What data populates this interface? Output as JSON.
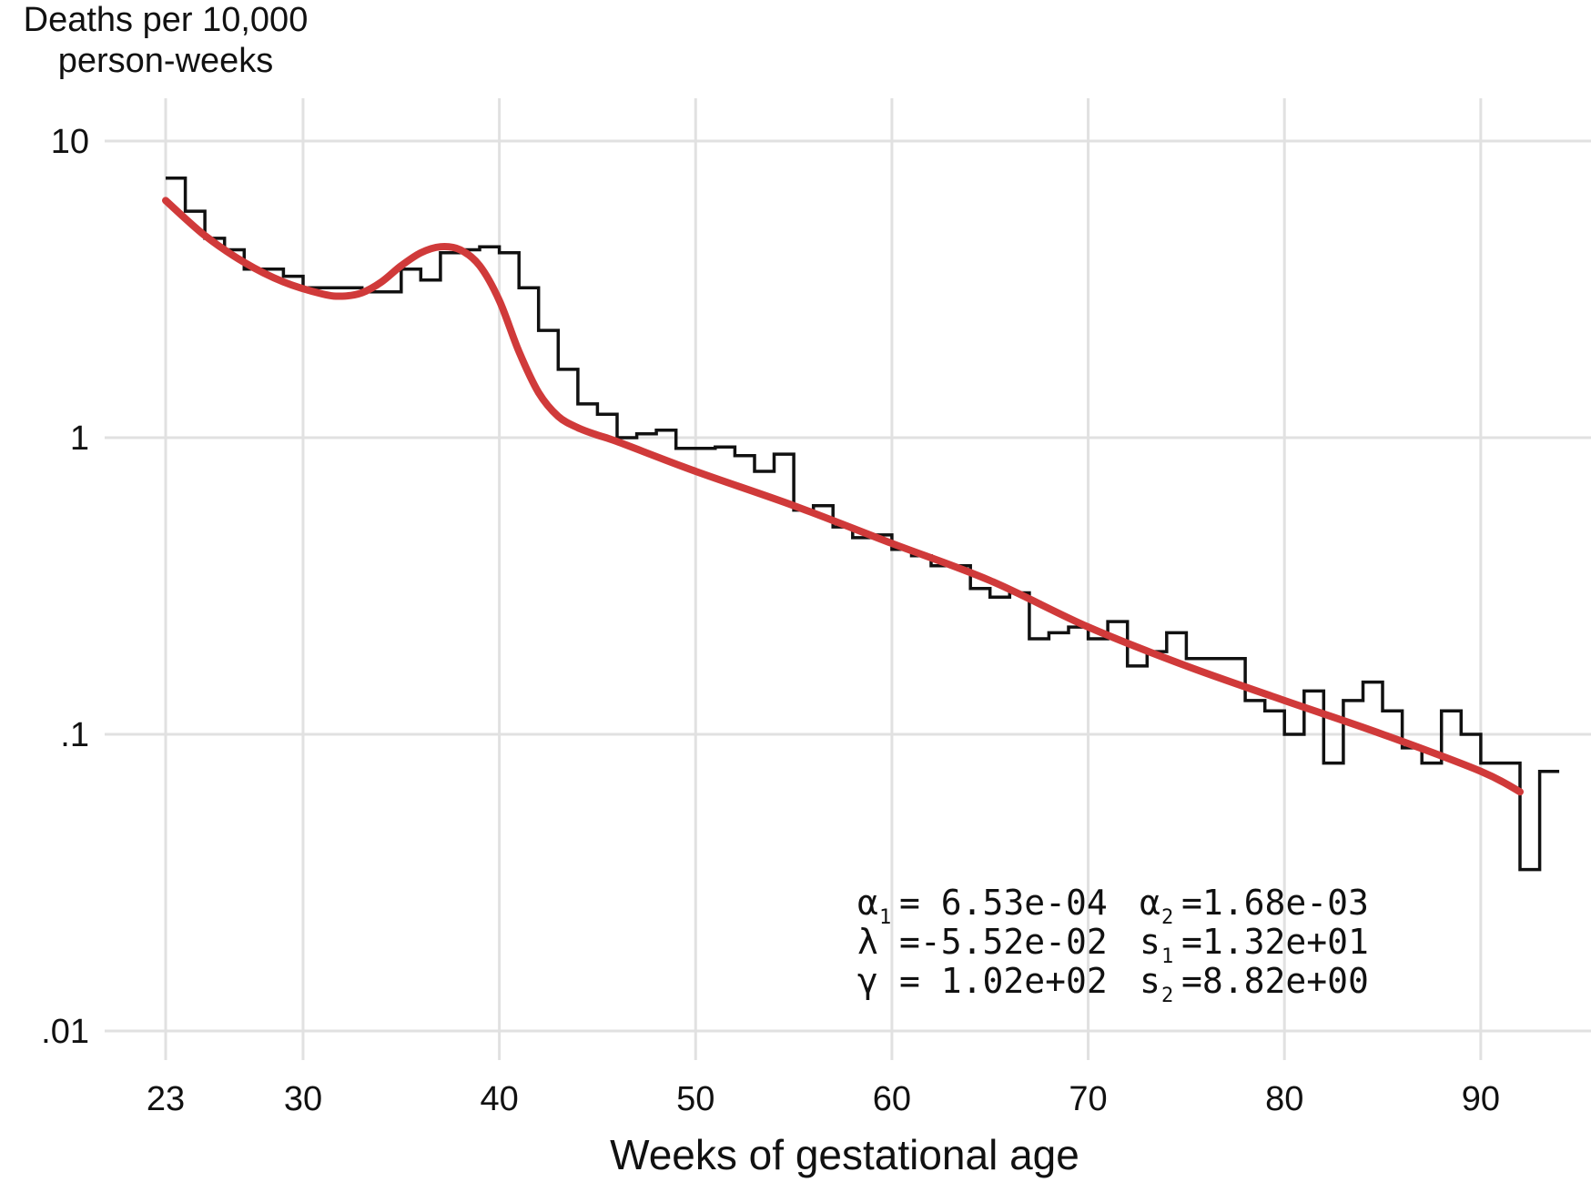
{
  "chart_data": {
    "type": "line",
    "title": "",
    "ylabel_lines": [
      "Deaths per 10,000",
      "person-weeks"
    ],
    "xlabel": "Weeks of gestational age",
    "xlim": [
      23,
      92
    ],
    "ylim": [
      0.01,
      10
    ],
    "y_scale": "log",
    "grid": true,
    "x_ticks": [
      {
        "value": 23,
        "label": "23"
      },
      {
        "value": 30,
        "label": "30"
      },
      {
        "value": 40,
        "label": "40"
      },
      {
        "value": 50,
        "label": "50"
      },
      {
        "value": 60,
        "label": "60"
      },
      {
        "value": 70,
        "label": "70"
      },
      {
        "value": 80,
        "label": "80"
      },
      {
        "value": 90,
        "label": "90"
      }
    ],
    "y_ticks": [
      {
        "value": 10,
        "label": "10"
      },
      {
        "value": 1,
        "label": "1"
      },
      {
        "value": 0.1,
        "label": ".1"
      },
      {
        "value": 0.01,
        "label": ".01"
      }
    ],
    "series": [
      {
        "style": "step",
        "color": "#111111",
        "x_start": 23,
        "bin_width": 1,
        "values": [
          7.5,
          5.8,
          4.7,
          4.3,
          3.7,
          3.7,
          3.5,
          3.2,
          3.2,
          3.2,
          3.1,
          3.1,
          3.7,
          3.4,
          4.2,
          4.3,
          4.4,
          4.2,
          3.2,
          2.3,
          1.7,
          1.3,
          1.2,
          1.0,
          1.03,
          1.06,
          0.92,
          0.92,
          0.93,
          0.87,
          0.77,
          0.88,
          0.57,
          0.59,
          0.5,
          0.46,
          0.47,
          0.42,
          0.4,
          0.37,
          0.37,
          0.31,
          0.29,
          0.3,
          0.21,
          0.22,
          0.23,
          0.21,
          0.24,
          0.17,
          0.19,
          0.22,
          0.18,
          0.18,
          0.18,
          0.13,
          0.12,
          0.1,
          0.14,
          0.08,
          0.13,
          0.15,
          0.12,
          0.09,
          0.08,
          0.12,
          0.1,
          0.08,
          0.08,
          0.035,
          0.075
        ]
      },
      {
        "style": "curve",
        "color": "#d03a3a",
        "x": [
          23,
          25,
          27,
          29,
          31,
          32,
          33,
          34,
          35,
          36,
          37,
          38,
          39,
          40,
          41,
          42,
          43,
          44,
          45,
          46,
          50,
          55,
          60,
          65,
          70,
          75,
          80,
          85,
          90,
          92
        ],
        "y": [
          6.3,
          4.8,
          3.9,
          3.35,
          3.05,
          3.0,
          3.08,
          3.35,
          3.8,
          4.2,
          4.4,
          4.3,
          3.8,
          2.9,
          1.95,
          1.42,
          1.18,
          1.08,
          1.02,
          0.97,
          0.77,
          0.59,
          0.44,
          0.33,
          0.23,
          0.17,
          0.13,
          0.1,
          0.075,
          0.064
        ]
      }
    ],
    "annotations": {
      "col1": [
        {
          "sym": "α",
          "sub": "1",
          "value": "=  6.53e-04"
        },
        {
          "sym": "λ",
          "sub": "",
          "value": "=-5.52e-02"
        },
        {
          "sym": "γ",
          "sub": "",
          "value": "=  1.02e+02"
        }
      ],
      "col2": [
        {
          "sym": "α",
          "sub": "2",
          "value": "=1.68e-03"
        },
        {
          "sym": "s",
          "sub": "1",
          "value": "=1.32e+01"
        },
        {
          "sym": "s",
          "sub": "2",
          "value": "=8.82e+00"
        }
      ]
    }
  }
}
